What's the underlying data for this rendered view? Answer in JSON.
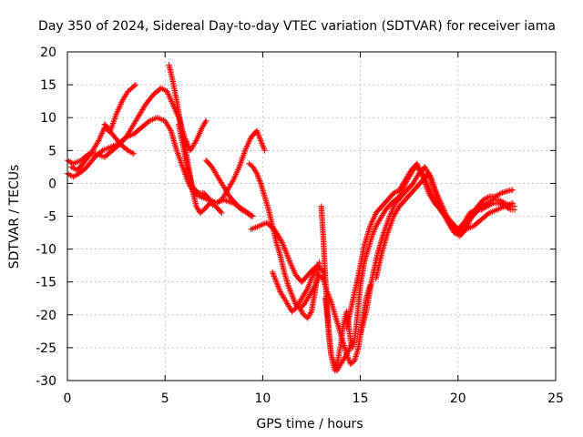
{
  "chart_data": {
    "type": "scatter",
    "title": "Day 350 of 2024, Sidereal Day-to-day VTEC variation (SDTVAR) for receiver iama",
    "xlabel": "GPS time / hours",
    "ylabel": "SDTVAR / TECUs",
    "xlim": [
      0,
      25
    ],
    "ylim": [
      -30,
      20
    ],
    "xticks": [
      0,
      5,
      10,
      15,
      20,
      25
    ],
    "yticks": [
      -30,
      -25,
      -20,
      -15,
      -10,
      -5,
      0,
      5,
      10,
      15,
      20
    ],
    "grid": true,
    "marker": "plus",
    "color": "#ff0000",
    "series": [
      {
        "x": [
          0.0,
          0.3,
          0.6,
          1.0,
          1.4,
          1.8,
          2.2,
          2.6,
          3.0,
          3.3,
          3.6,
          4.0,
          4.4,
          4.8,
          5.1,
          5.4,
          5.7,
          6.0,
          6.3,
          6.6,
          6.9,
          7.1
        ],
        "y": [
          1.5,
          1.0,
          1.5,
          2.5,
          4.0,
          5.0,
          5.5,
          6.0,
          7.0,
          8.5,
          10.0,
          12.0,
          13.5,
          14.5,
          14.0,
          12.0,
          10.0,
          7.0,
          5.0,
          6.5,
          8.5,
          9.5
        ]
      },
      {
        "x": [
          0.0,
          0.3,
          0.7,
          1.1,
          1.5,
          1.9,
          2.3,
          2.7,
          3.0,
          3.4,
          3.8,
          4.2,
          4.6,
          5.0,
          5.3,
          5.6,
          5.9,
          6.2,
          6.5,
          6.8,
          7.2,
          7.6,
          8.0,
          8.5,
          9.0,
          9.5
        ],
        "y": [
          3.5,
          3.0,
          3.5,
          4.5,
          4.5,
          4.0,
          5.0,
          6.0,
          7.0,
          7.5,
          8.5,
          9.5,
          10.0,
          9.5,
          8.0,
          5.0,
          2.5,
          0.0,
          -1.5,
          -2.0,
          -2.5,
          -3.0,
          -2.5,
          -3.0,
          -4.0,
          -5.0
        ]
      },
      {
        "x": [
          0.2,
          0.5,
          0.8,
          1.2,
          1.6,
          1.9,
          2.3,
          2.7,
          3.1,
          3.4
        ],
        "y": [
          2.5,
          2.0,
          3.0,
          4.5,
          6.5,
          8.5,
          7.5,
          6.0,
          5.0,
          4.5
        ]
      },
      {
        "x": [
          1.9,
          2.2,
          2.5,
          2.8,
          3.1,
          3.3,
          3.5
        ],
        "y": [
          9.0,
          8.0,
          10.5,
          12.5,
          14.0,
          14.5,
          15.0
        ]
      },
      {
        "x": [
          5.2,
          5.4,
          5.6,
          5.8,
          6.0,
          6.2,
          6.4,
          6.6,
          6.8,
          7.0,
          7.3,
          7.6,
          7.9
        ],
        "y": [
          18.0,
          15.5,
          12.5,
          9.0,
          6.0,
          2.5,
          -1.0,
          -3.5,
          -4.5,
          -4.0,
          -3.0,
          -3.5,
          -4.5
        ]
      },
      {
        "x": [
          5.7,
          5.9,
          6.1,
          6.4,
          6.7,
          7.0,
          7.3,
          7.6,
          7.9,
          8.2,
          8.5,
          8.8,
          9.1,
          9.4,
          9.7,
          9.9,
          10.1
        ],
        "y": [
          9.0,
          6.0,
          3.0,
          -0.5,
          -1.5,
          -1.5,
          -2.5,
          -3.0,
          -2.5,
          -1.0,
          0.5,
          2.5,
          5.0,
          7.0,
          8.0,
          6.5,
          5.0
        ]
      },
      {
        "x": [
          7.1,
          7.4,
          7.7,
          8.0,
          8.3,
          8.6,
          8.9,
          9.2,
          9.4
        ],
        "y": [
          3.5,
          2.5,
          1.0,
          -0.5,
          -2.0,
          -3.0,
          -4.0,
          -4.5,
          -5.0
        ]
      },
      {
        "x": [
          9.3,
          9.5,
          9.7,
          9.9,
          10.1,
          10.3,
          10.5,
          10.7,
          10.9,
          11.1,
          11.3,
          11.5,
          11.7,
          11.9,
          12.1,
          12.3,
          12.5,
          12.7,
          12.9,
          13.1,
          13.3,
          13.5,
          13.7,
          13.9,
          14.1,
          14.3,
          14.5,
          14.7,
          14.9,
          15.1,
          15.3,
          15.5
        ],
        "y": [
          3.0,
          2.5,
          1.5,
          0.0,
          -2.0,
          -4.0,
          -6.5,
          -9.0,
          -11.0,
          -13.5,
          -15.5,
          -17.0,
          -18.5,
          -19.0,
          -18.5,
          -17.5,
          -16.5,
          -15.5,
          -14.0,
          -14.5,
          -16.5,
          -18.0,
          -20.0,
          -22.0,
          -24.0,
          -26.0,
          -27.5,
          -27.0,
          -25.0,
          -21.0,
          -17.5,
          -15.5
        ]
      },
      {
        "x": [
          10.5,
          10.7,
          10.9,
          11.1,
          11.3,
          11.5,
          11.7,
          11.9,
          12.1,
          12.3,
          12.5,
          12.7
        ],
        "y": [
          -13.5,
          -15.0,
          -16.5,
          -17.5,
          -18.5,
          -19.5,
          -19.0,
          -18.0,
          -17.0,
          -16.0,
          -14.5,
          -13.0
        ]
      },
      {
        "x": [
          9.4,
          9.8,
          10.2,
          10.6,
          11.0,
          11.4,
          11.7,
          12.0,
          12.3,
          12.6,
          12.8,
          13.0,
          13.2
        ],
        "y": [
          -7.0,
          -6.5,
          -6.0,
          -7.0,
          -9.0,
          -12.0,
          -14.0,
          -15.0,
          -14.0,
          -13.0,
          -12.5,
          -13.0,
          -14.0
        ]
      },
      {
        "x": [
          11.9,
          12.1,
          12.3,
          12.5,
          12.7,
          12.9
        ],
        "y": [
          -19.0,
          -20.0,
          -20.5,
          -19.5,
          -16.0,
          -12.0
        ]
      },
      {
        "x": [
          13.2,
          13.3,
          13.4,
          13.5,
          13.6,
          13.7,
          13.8,
          13.9,
          14.0,
          14.2,
          14.4,
          14.6
        ],
        "y": [
          -17.5,
          -20.0,
          -23.5,
          -26.0,
          -27.0,
          -27.5,
          -28.5,
          -28.0,
          -27.5,
          -26.5,
          -25.5,
          -24.0
        ]
      },
      {
        "x": [
          13.0,
          13.1,
          13.2,
          13.3,
          13.4,
          13.5,
          13.6,
          13.7,
          13.8,
          13.9,
          14.0,
          14.1,
          14.2,
          14.3,
          14.4,
          14.5,
          14.6,
          14.7,
          14.8,
          14.9,
          15.0,
          15.2,
          15.4,
          15.6,
          15.8,
          16.0,
          16.3,
          16.6,
          17.0,
          17.4,
          17.8,
          18.1,
          18.4,
          18.8,
          19.2,
          19.6,
          20.0,
          20.4,
          20.8,
          21.2,
          21.6,
          22.0,
          22.4,
          22.8
        ],
        "y": [
          -3.5,
          -8.0,
          -14.0,
          -19.0,
          -23.0,
          -26.0,
          -27.5,
          -28.5,
          -28.0,
          -26.0,
          -24.5,
          -22.0,
          -20.5,
          -19.5,
          -21.5,
          -24.0,
          -25.0,
          -24.0,
          -21.5,
          -18.5,
          -15.5,
          -12.0,
          -10.0,
          -8.0,
          -6.5,
          -5.5,
          -4.0,
          -3.0,
          -2.0,
          0.5,
          2.5,
          2.0,
          0.0,
          -2.5,
          -4.5,
          -6.0,
          -7.5,
          -7.0,
          -6.5,
          -5.5,
          -4.5,
          -4.0,
          -3.5,
          -3.0
        ]
      },
      {
        "x": [
          14.3,
          14.6,
          14.9,
          15.2,
          15.5,
          15.8,
          16.1,
          16.4,
          16.7,
          17.0,
          17.3,
          17.6,
          17.9,
          18.2,
          18.5,
          18.8,
          19.1,
          19.4,
          19.7,
          20.0,
          20.3,
          20.6,
          20.9,
          21.2,
          21.5,
          21.8,
          22.1,
          22.4,
          22.7,
          22.9
        ],
        "y": [
          -22.0,
          -18.0,
          -14.0,
          -9.5,
          -6.5,
          -4.5,
          -3.5,
          -2.5,
          -1.5,
          -1.0,
          0.5,
          2.0,
          3.0,
          1.0,
          -1.5,
          -3.0,
          -4.0,
          -5.0,
          -6.0,
          -7.0,
          -6.0,
          -4.5,
          -4.0,
          -4.0,
          -3.5,
          -3.0,
          -3.0,
          -3.5,
          -4.0,
          -4.0
        ]
      },
      {
        "x": [
          15.0,
          15.3,
          15.6,
          15.9,
          16.2,
          16.5,
          16.8,
          17.1,
          17.4,
          17.7,
          18.0,
          18.3,
          18.6,
          18.9,
          19.2,
          19.5,
          19.8,
          20.1,
          20.4,
          20.7,
          21.0,
          21.3,
          21.6,
          21.9,
          22.2,
          22.5,
          22.8
        ],
        "y": [
          -23.0,
          -19.5,
          -14.5,
          -10.5,
          -7.5,
          -5.0,
          -3.0,
          -2.0,
          -1.0,
          0.0,
          1.5,
          2.5,
          1.0,
          -1.5,
          -3.5,
          -5.5,
          -7.5,
          -8.0,
          -7.0,
          -5.0,
          -3.5,
          -2.5,
          -2.0,
          -2.0,
          -1.5,
          -1.2,
          -1.0
        ]
      },
      {
        "x": [
          15.8,
          16.1,
          16.4,
          16.7,
          17.0,
          17.3,
          17.6,
          17.9,
          18.2,
          18.5,
          18.8,
          19.1,
          19.4,
          19.7,
          20.0,
          20.3,
          20.6,
          20.9,
          21.2,
          21.5,
          21.8,
          22.1,
          22.4,
          22.7,
          22.9
        ],
        "y": [
          -14.5,
          -10.5,
          -7.5,
          -5.0,
          -3.5,
          -2.5,
          -1.5,
          -0.5,
          0.5,
          1.5,
          -1.0,
          -3.5,
          -5.5,
          -7.0,
          -7.5,
          -6.5,
          -5.5,
          -4.5,
          -3.5,
          -3.0,
          -2.5,
          -2.5,
          -3.0,
          -3.5,
          -3.5
        ]
      }
    ]
  }
}
